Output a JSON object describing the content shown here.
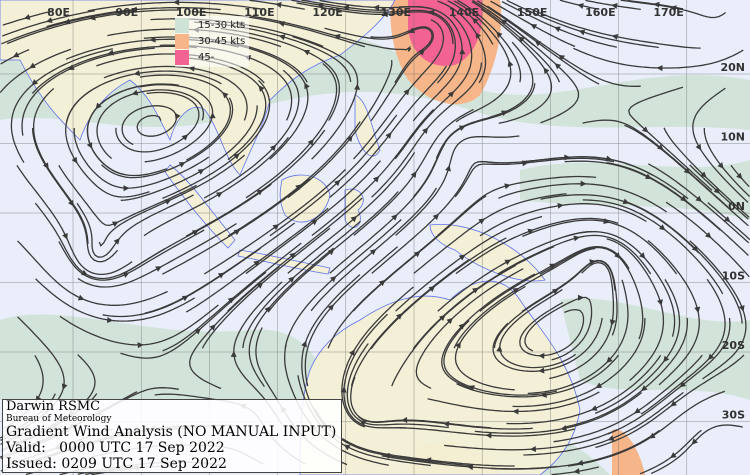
{
  "map": {
    "longitude_labels": [
      "80E",
      "90E",
      "100E",
      "110E",
      "120E",
      "130E",
      "140E",
      "150E",
      "160E",
      "170E"
    ],
    "latitude_labels": [
      "20N",
      "10N",
      "0N",
      "10S",
      "20S",
      "30S"
    ],
    "colors": {
      "ocean": "#e9eefa",
      "land": "#f4f1d6",
      "coast": "#5a6cf0",
      "streamline": "#3a3a3a"
    }
  },
  "legend": [
    {
      "label": "15-30 kts",
      "color": "#cfe2d6"
    },
    {
      "label": "30-45 kts",
      "color": "#f6b68a"
    },
    {
      "label": "45-",
      "color": "#f26394"
    }
  ],
  "title_block": {
    "centre": "Darwin RSMC",
    "agency": "Bureau of Meteorology",
    "product": "Gradient Wind Analysis (NO MANUAL INPUT)",
    "valid": "Valid:   0000 UTC 17 Sep 2022",
    "issued": "Issued: 0209 UTC 17 Sep 2022"
  }
}
